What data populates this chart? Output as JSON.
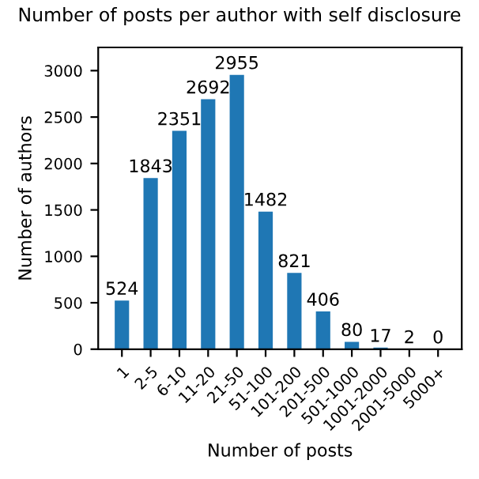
{
  "chart_data": {
    "type": "bar",
    "title": "Number of posts per author with self disclosure",
    "xlabel": "Number of posts",
    "ylabel": "Number of authors",
    "categories": [
      "1",
      "2-5",
      "6-10",
      "11-20",
      "21-50",
      "51-100",
      "101-200",
      "201-500",
      "501-1000",
      "1001-2000",
      "2001-5000",
      "5000+"
    ],
    "values": [
      524,
      1843,
      2351,
      2692,
      2955,
      1482,
      821,
      406,
      80,
      17,
      2,
      0
    ],
    "color": "#1f77b4",
    "ylim": [
      0,
      3250
    ],
    "yticks": [
      0,
      500,
      1000,
      1500,
      2000,
      2500,
      3000
    ],
    "data_labels": true,
    "grid": false
  }
}
